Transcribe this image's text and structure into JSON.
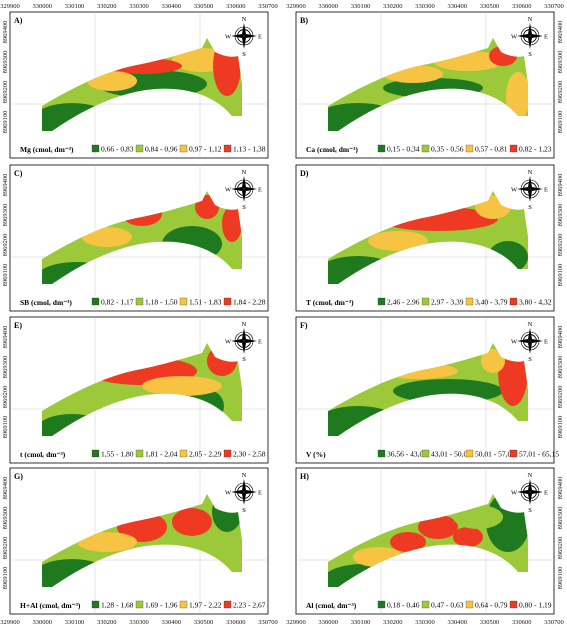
{
  "colors": {
    "dark": "#1f7a1f",
    "light": "#9cc93a",
    "mid": "#f6c342",
    "high": "#ee3a22",
    "frame": "#000000"
  },
  "x_ticks": [
    "329900",
    "330000",
    "330100",
    "330200",
    "330300",
    "330400",
    "330500",
    "330600",
    "330700"
  ],
  "y_ticks": [
    "8969400",
    "8969300",
    "8969200",
    "8969100"
  ],
  "compass": {
    "n": "N",
    "s": "S",
    "e": "E",
    "w": "W"
  },
  "panels": [
    {
      "label": "A)",
      "legend_title": "Mg (cmolₑ dm⁻³)",
      "classes": [
        "0,66 - 0,83",
        "0,84 - 0,96",
        "0,97 - 1,12",
        "1,13 - 1,38"
      ]
    },
    {
      "label": "B)",
      "legend_title": "Ca (cmolₑ dm⁻³)",
      "classes": [
        "0,15 - 0,34",
        "0,35 - 0,56",
        "0,57 - 0,81",
        "0,82 - 1,23"
      ]
    },
    {
      "label": "C)",
      "legend_title": "SB (cmolₑ dm⁻³)",
      "classes": [
        "0,82 - 1,17",
        "1,18 - 1,50",
        "1,51 - 1,83",
        "1,84 - 2,28"
      ]
    },
    {
      "label": "D)",
      "legend_title": "T (cmolₑ dm⁻³)",
      "classes": [
        "2,46 - 2,96",
        "2,97 - 3,39",
        "3,40 - 3,79",
        "3,80 - 4,32"
      ]
    },
    {
      "label": "E)",
      "legend_title": "t (cmolₑ dm⁻³)",
      "classes": [
        "1,55 - 1,80",
        "1,81 - 2,04",
        "2,05 - 2,29",
        "2,30 - 2,58"
      ]
    },
    {
      "label": "F)",
      "legend_title": "V (%)",
      "classes": [
        "36,56 - 43,00",
        "43,01 - 50,00",
        "50,01 - 57,00",
        "57,01 - 65,15"
      ]
    },
    {
      "label": "G)",
      "legend_title": "H+Al (cmolₑ dm⁻³)",
      "classes": [
        "1,28 - 1,68",
        "1,69 - 1,96",
        "1,97 - 2,22",
        "2,23 - 2,67"
      ]
    },
    {
      "label": "H)",
      "legend_title": "Al (cmolₑ dm⁻³)",
      "classes": [
        "0,18 - 0,46",
        "0,47 - 0,63",
        "0,64 - 0,79",
        "0,80 - 1,19"
      ]
    }
  ]
}
